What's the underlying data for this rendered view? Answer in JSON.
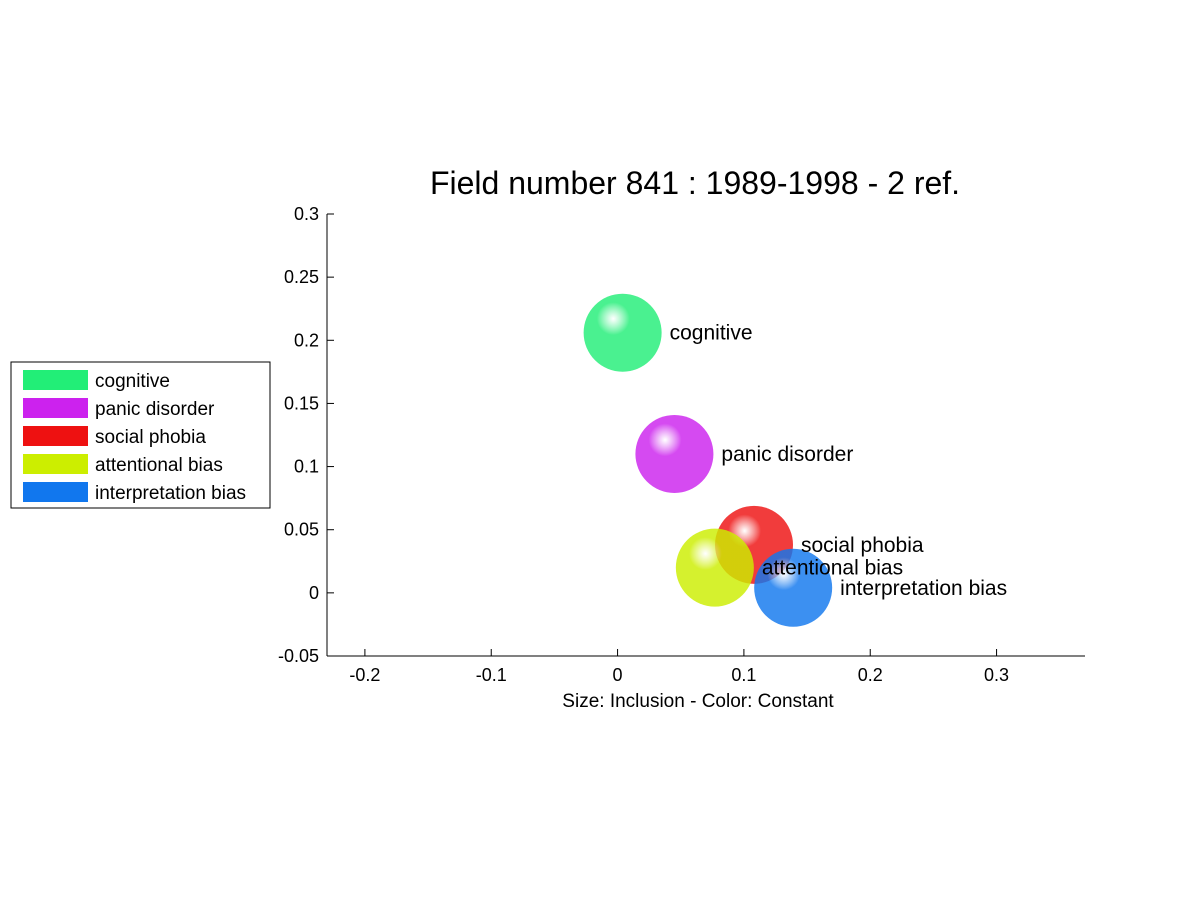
{
  "chart_data": {
    "type": "scatter",
    "title": "Field number 841 : 1989-1998  - 2 ref.",
    "xlabel": "Size: Inclusion - Color: Constant",
    "ylabel": "",
    "xlim": [
      -0.23,
      0.37
    ],
    "ylim": [
      -0.05,
      0.3
    ],
    "xticks": [
      -0.2,
      -0.1,
      0,
      0.1,
      0.2,
      0.3
    ],
    "xtick_labels": [
      "-0.2",
      "-0.1",
      "0",
      "0.1",
      "0.2",
      "0.3"
    ],
    "yticks": [
      -0.05,
      0,
      0.05,
      0.1,
      0.15,
      0.2,
      0.25,
      0.3
    ],
    "ytick_labels": [
      "-0.05",
      "0",
      "0.05",
      "0.1",
      "0.15",
      "0.2",
      "0.25",
      "0.3"
    ],
    "grid": false,
    "legend_position": "left",
    "points": [
      {
        "label": "cognitive",
        "x": 0.004,
        "y": 0.206,
        "color": "#22ee77"
      },
      {
        "label": "panic disorder",
        "x": 0.045,
        "y": 0.11,
        "color": "#cc22ee"
      },
      {
        "label": "social phobia",
        "x": 0.108,
        "y": 0.038,
        "color": "#ee1111"
      },
      {
        "label": "attentional bias",
        "x": 0.077,
        "y": 0.02,
        "color": "#ccee00"
      },
      {
        "label": "interpretation bias",
        "x": 0.139,
        "y": 0.004,
        "color": "#1177ee"
      }
    ]
  }
}
